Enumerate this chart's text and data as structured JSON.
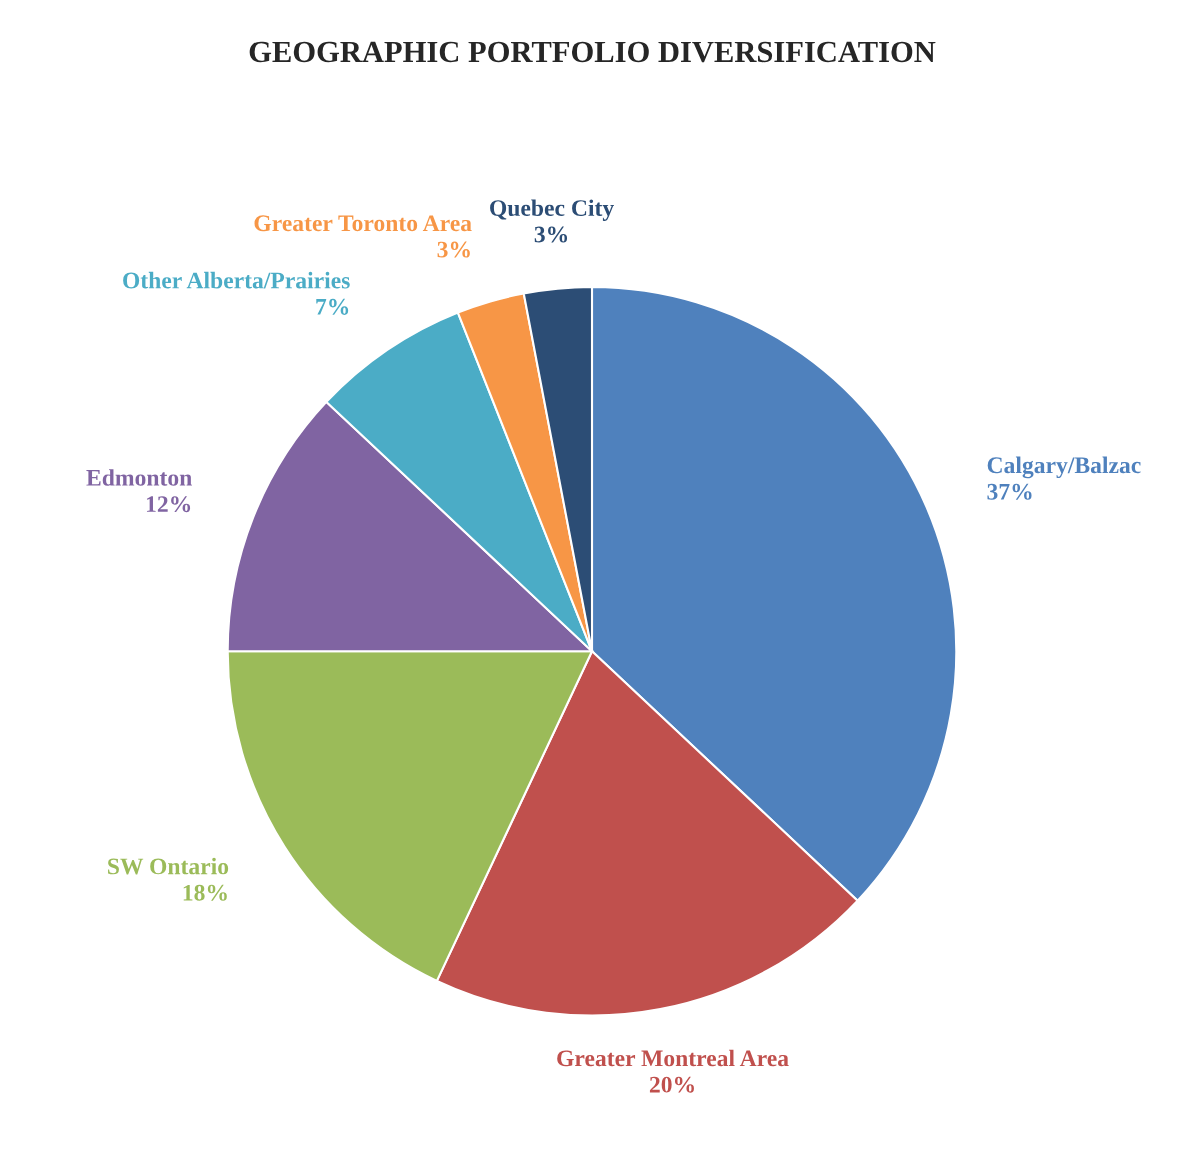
{
  "chart_data": {
    "type": "pie",
    "title": "GEOGRAPHIC PORTFOLIO DIVERSIFICATION",
    "categories": [
      "Calgary/Balzac",
      "Greater Montreal Area",
      "SW Ontario",
      "Edmonton",
      "Other Alberta/Prairies",
      "Greater Toronto Area",
      "Quebec City"
    ],
    "values": [
      37,
      20,
      18,
      12,
      7,
      3,
      3
    ],
    "value_labels": [
      "37%",
      "20%",
      "18%",
      "12%",
      "7%",
      "3%",
      "3%"
    ],
    "colors": [
      "#4f81bd",
      "#c0504d",
      "#9bbb59",
      "#8064a2",
      "#4bacc6",
      "#f79646",
      "#2c4d75"
    ],
    "legend": false
  }
}
